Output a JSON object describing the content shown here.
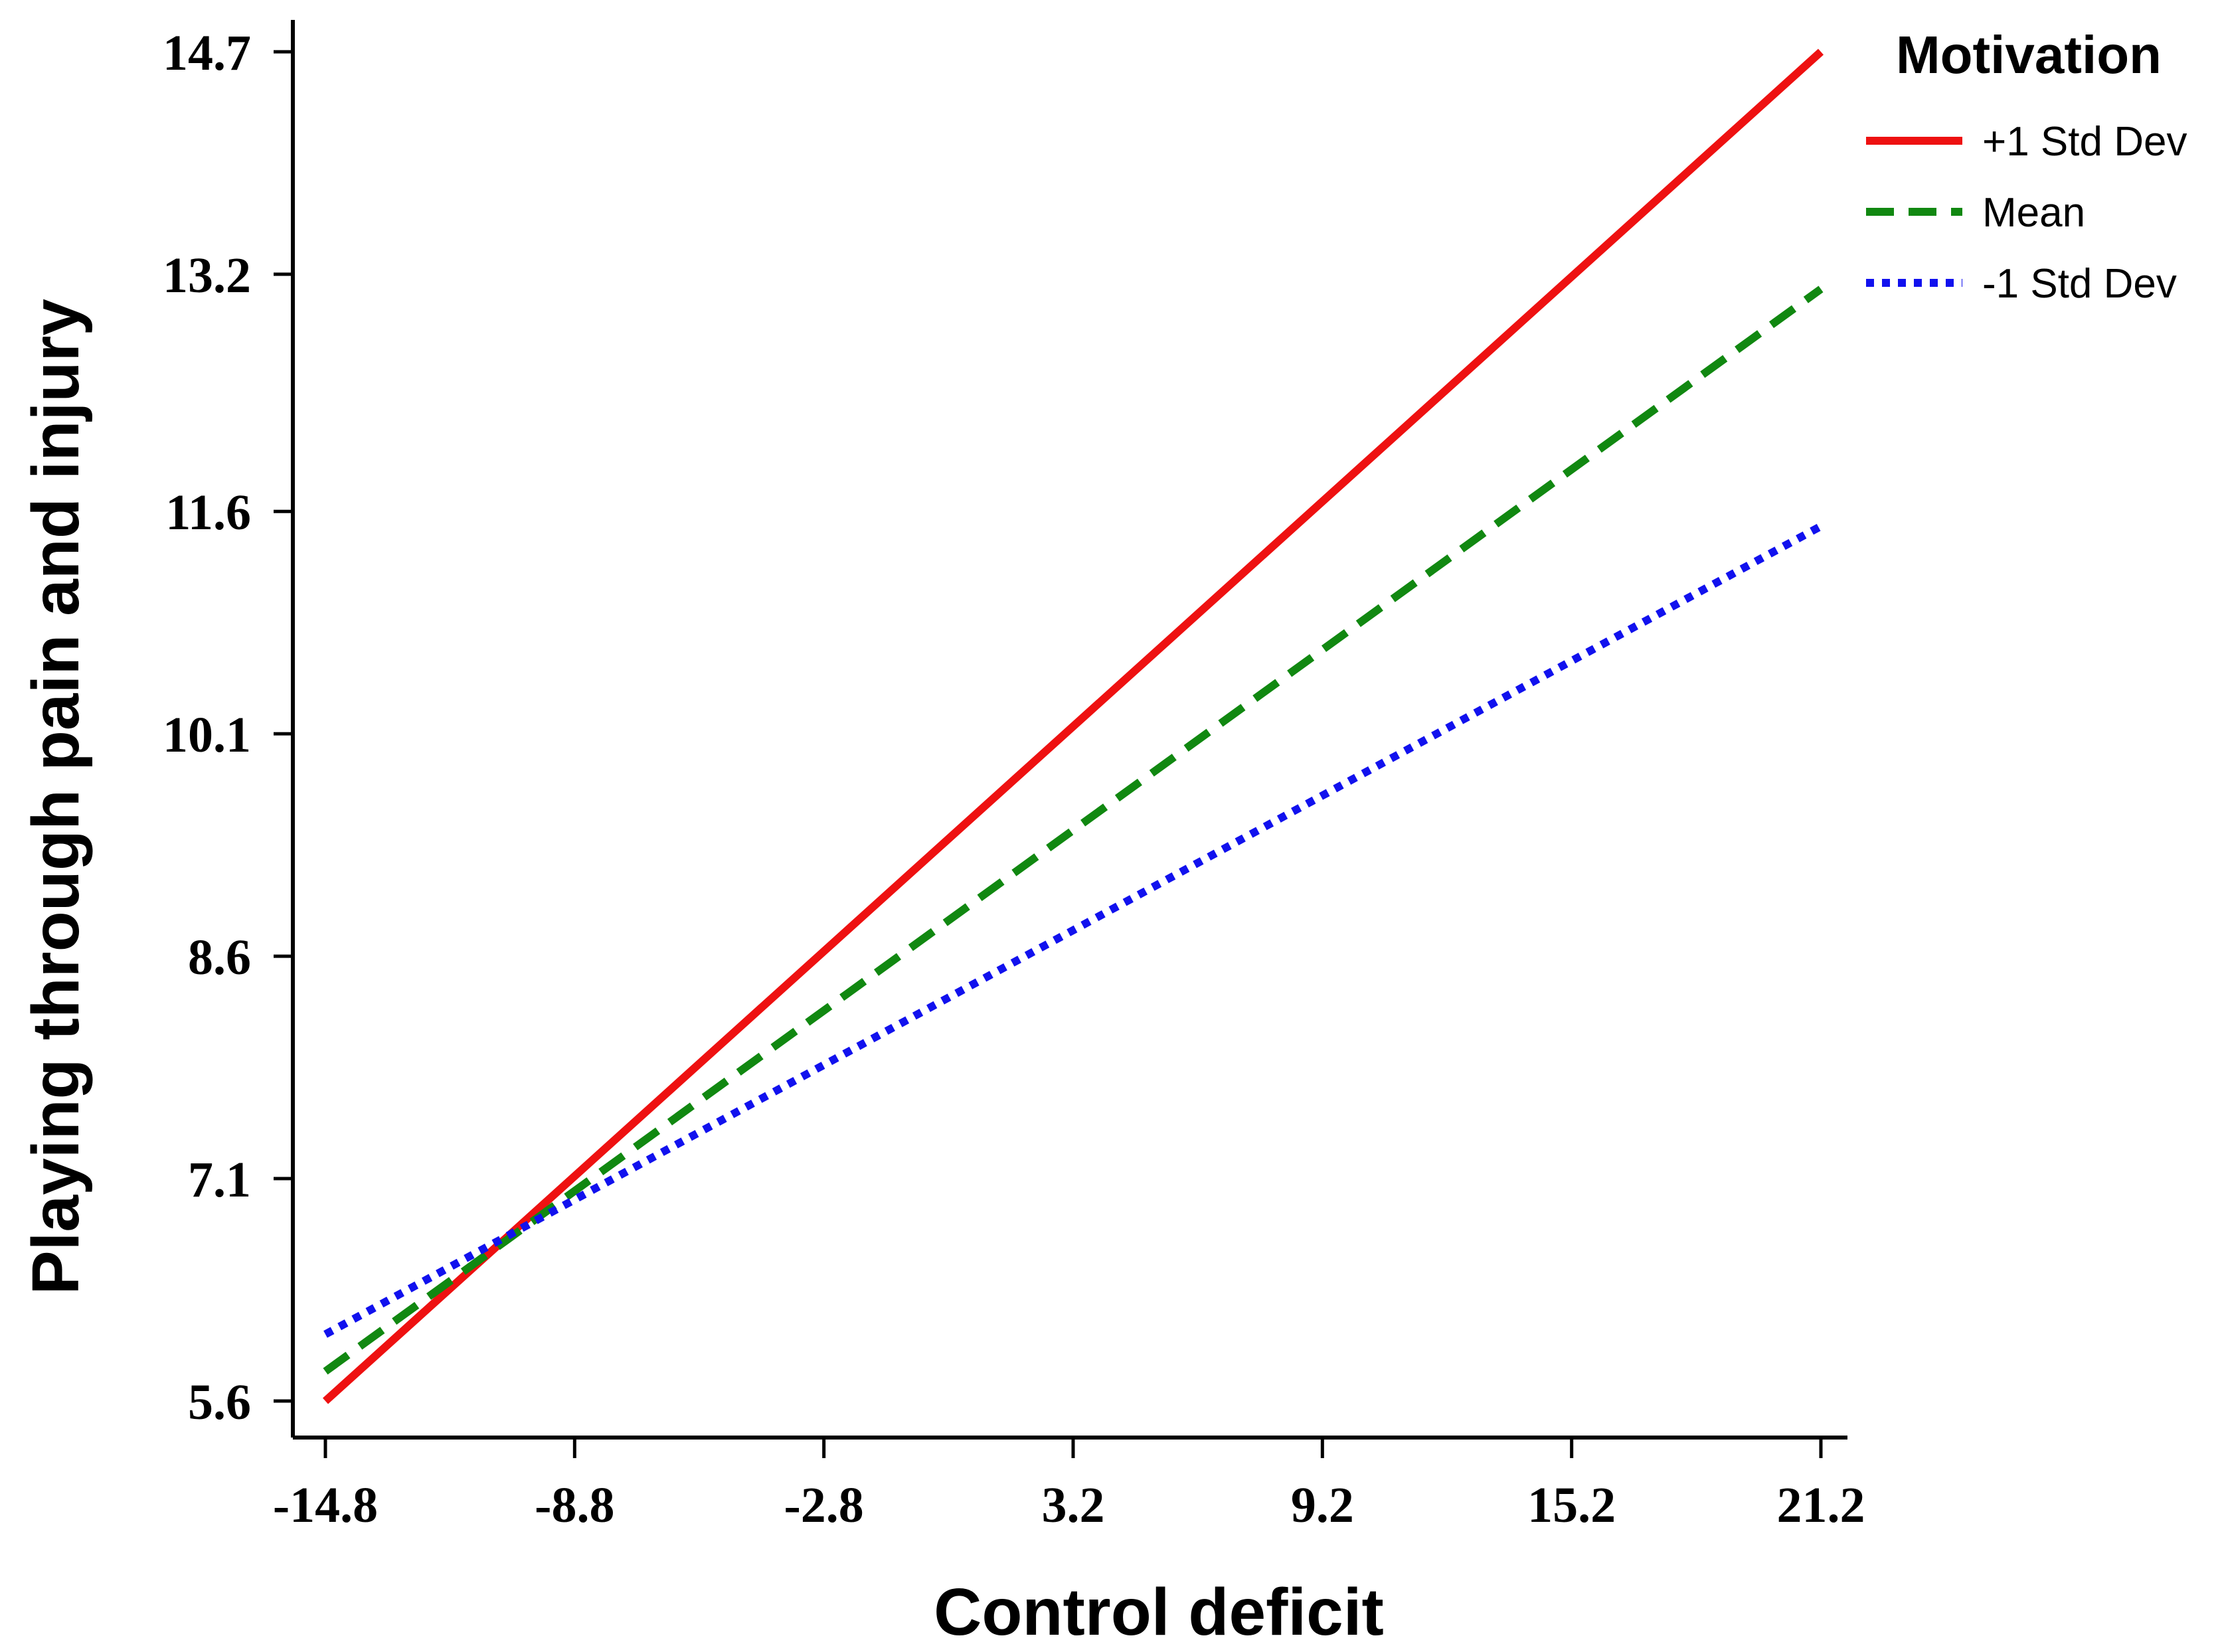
{
  "chart_data": {
    "type": "line",
    "title": "",
    "xlabel": "Control deficit",
    "ylabel": "Playing through pain and injury",
    "x_ticks": [
      "-14.8",
      "-8.8",
      "-2.8",
      "3.2",
      "9.2",
      "15.2",
      "21.2"
    ],
    "y_ticks": [
      "5.6",
      "7.1",
      "8.6",
      "10.1",
      "11.6",
      "13.2",
      "14.7"
    ],
    "xlim": [
      -15.5,
      21.8
    ],
    "ylim": [
      5.4,
      14.9
    ],
    "grid": false,
    "legend": {
      "title": "Motivation",
      "position": "top-right"
    },
    "series": [
      {
        "name": "+1 Std Dev",
        "style": "solid",
        "color": "#ee1111",
        "x": [
          -14.8,
          21.2
        ],
        "y": [
          5.6,
          14.7
        ]
      },
      {
        "name": "Mean",
        "style": "dashed",
        "color": "#118811",
        "x": [
          -14.8,
          21.2
        ],
        "y": [
          5.8,
          13.1
        ]
      },
      {
        "name": "-1 Std Dev",
        "style": "dotted",
        "color": "#1111ee",
        "x": [
          -14.8,
          21.2
        ],
        "y": [
          6.05,
          11.5
        ]
      }
    ]
  }
}
